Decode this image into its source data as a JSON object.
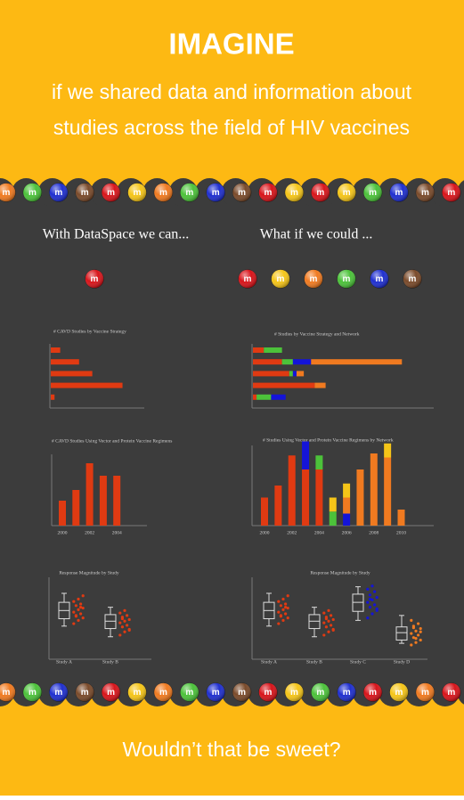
{
  "header": {
    "title": "IMAGINE",
    "lines": [
      "if we shared data and information about",
      "studies across the field of HIV vaccines"
    ]
  },
  "candy_logo": "m",
  "left": {
    "heading": "With DataSpace we can...",
    "charts": [
      {
        "type": "hbar",
        "title": "# CAVD Studies by Vaccine Strategy",
        "xlim": [
          0,
          25
        ],
        "series": [
          {
            "color": "#e03a12",
            "values": [
              2.5,
              7.5,
              11,
              19,
              1
            ]
          }
        ]
      },
      {
        "type": "bar",
        "title": "# CAVD Studies Using Vector and Protein Vaccine Regimens",
        "x": [
          2000,
          2001,
          2002,
          2003,
          2004
        ],
        "xticks": [
          2000,
          2002,
          2004
        ],
        "ylim": [
          0,
          20
        ],
        "series": [
          {
            "color": "#e03a12",
            "values": [
              7,
              10,
              17.5,
              14,
              14
            ]
          }
        ]
      },
      {
        "type": "box",
        "title": "Response Magnitude by Study",
        "ylim": [
          0,
          100
        ],
        "categories": [
          "Study A",
          "Study B"
        ],
        "boxes": [
          {
            "color": "#e03a12",
            "min": 35,
            "q1": 44,
            "median": 54,
            "q3": 64,
            "max": 75,
            "points": [
              38,
              42,
              45,
              48,
              50,
              52,
              55,
              57,
              60,
              62,
              65,
              68,
              72,
              47,
              58
            ]
          },
          {
            "color": "#e03a12",
            "min": 22,
            "q1": 32,
            "median": 41,
            "q3": 49,
            "max": 58,
            "points": [
              24,
              28,
              31,
              34,
              36,
              39,
              41,
              43,
              46,
              48,
              51,
              54,
              30,
              44
            ]
          }
        ]
      }
    ]
  },
  "right": {
    "heading": "What if we could ...",
    "charts": [
      {
        "type": "hbar",
        "title": "# Studies by Vaccine Strategy and Network",
        "xlim": [
          0,
          50
        ],
        "series": [
          {
            "color": "#e03a12",
            "values": [
              3,
              8,
              10,
              17,
              1
            ]
          },
          {
            "color": "#4cc23a",
            "values": [
              5,
              3,
              1,
              0,
              4
            ]
          },
          {
            "color": "#1414d8",
            "values": [
              0,
              5,
              1,
              0,
              4
            ]
          },
          {
            "color": "#f07a20",
            "values": [
              0,
              25,
              2,
              3,
              0
            ]
          }
        ]
      },
      {
        "type": "bar",
        "title": "# Studies Using Vector and Protein Vaccine Regimens by Network",
        "x": [
          2000,
          2001,
          2002,
          2003,
          2004,
          2005,
          2006,
          2007,
          2008,
          2009,
          2010
        ],
        "xticks": [
          2000,
          2002,
          2004,
          2006,
          2008,
          2010
        ],
        "ylim": [
          0,
          20
        ],
        "series": [
          {
            "color": "#e03a12",
            "values": [
              7,
              10,
              17.5,
              14,
              14,
              0,
              0,
              0,
              0,
              0,
              0
            ]
          },
          {
            "color": "#4cc23a",
            "values": [
              0,
              0,
              0,
              0,
              3.5,
              3.5,
              0,
              0,
              0,
              0,
              0
            ]
          },
          {
            "color": "#1414d8",
            "values": [
              0,
              0,
              0,
              7,
              0,
              0,
              3,
              0,
              0,
              0,
              0
            ]
          },
          {
            "color": "#f07a20",
            "values": [
              0,
              0,
              0,
              0,
              0,
              0,
              4,
              14,
              18,
              17,
              4
            ]
          },
          {
            "color": "#f5c518",
            "values": [
              0,
              0,
              0,
              0,
              0,
              3.5,
              3.5,
              0,
              0,
              3.5,
              0
            ]
          }
        ]
      },
      {
        "type": "box",
        "title": "Response Magnitude by Study",
        "ylim": [
          0,
          100
        ],
        "categories": [
          "Study A",
          "Study B",
          "Study C",
          "Study D"
        ],
        "boxes": [
          {
            "color": "#e03a12",
            "min": 35,
            "q1": 44,
            "median": 54,
            "q3": 64,
            "max": 75,
            "points": [
              38,
              42,
              45,
              48,
              50,
              52,
              55,
              57,
              60,
              62,
              65,
              68,
              72,
              47,
              58
            ]
          },
          {
            "color": "#e03a12",
            "min": 22,
            "q1": 32,
            "median": 41,
            "q3": 49,
            "max": 58,
            "points": [
              24,
              28,
              31,
              34,
              36,
              39,
              41,
              43,
              46,
              48,
              51,
              54,
              30,
              44
            ]
          },
          {
            "color": "#1414d8",
            "min": 42,
            "q1": 53,
            "median": 64,
            "q3": 74,
            "max": 83,
            "points": [
              45,
              50,
              54,
              58,
              61,
              64,
              67,
              70,
              73,
              77,
              80,
              84,
              56,
              68
            ]
          },
          {
            "color": "#f07a20",
            "min": 14,
            "q1": 18,
            "median": 27,
            "q3": 34,
            "max": 48,
            "points": [
              12,
              15,
              18,
              21,
              24,
              26,
              29,
              32,
              35,
              38,
              42,
              20,
              28,
              33
            ]
          }
        ]
      }
    ]
  },
  "footer": "Wouldn’t that be sweet?"
}
